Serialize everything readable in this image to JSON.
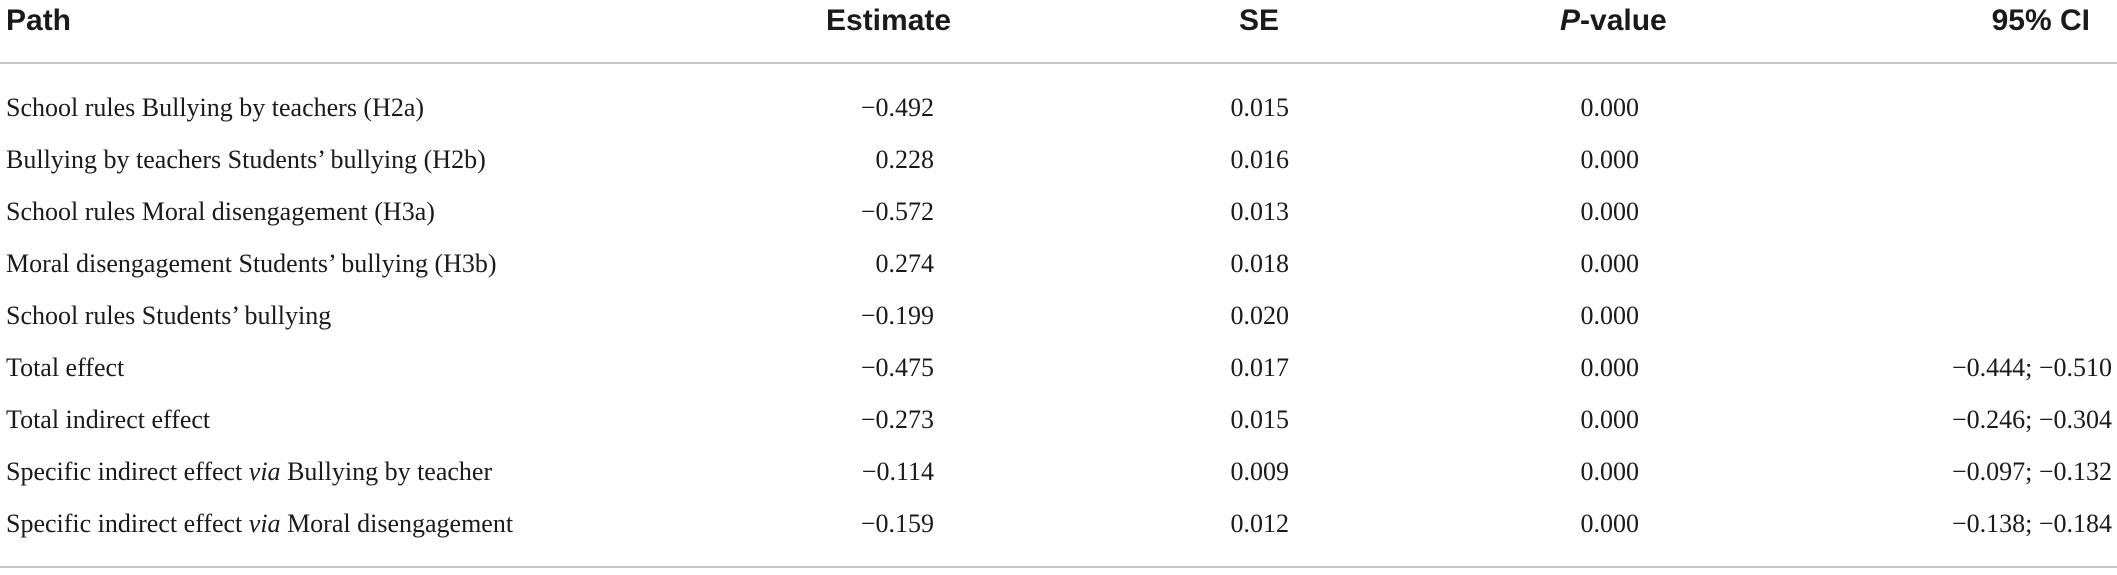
{
  "table": {
    "headers": {
      "path": "Path",
      "estimate": "Estimate",
      "se": "SE",
      "p_prefix": "P",
      "p_suffix": "-value",
      "ci": "95% CI"
    },
    "rows": [
      {
        "path": "School rules Bullying by teachers (H2a)",
        "estimate": "−0.492",
        "se": "0.015",
        "p": "0.000",
        "ci": ""
      },
      {
        "path": "Bullying by teachers Students’ bullying (H2b)",
        "estimate": "0.228",
        "se": "0.016",
        "p": "0.000",
        "ci": ""
      },
      {
        "path": "School rules Moral disengagement (H3a)",
        "estimate": "−0.572",
        "se": "0.013",
        "p": "0.000",
        "ci": ""
      },
      {
        "path": "Moral disengagement Students’ bullying (H3b)",
        "estimate": "0.274",
        "se": "0.018",
        "p": "0.000",
        "ci": ""
      },
      {
        "path": "School rules Students’ bullying",
        "estimate": "−0.199",
        "se": "0.020",
        "p": "0.000",
        "ci": ""
      },
      {
        "path": "Total effect",
        "estimate": "−0.475",
        "se": "0.017",
        "p": "0.000",
        "ci": "−0.444; −0.510"
      },
      {
        "path": "Total indirect effect",
        "estimate": "−0.273",
        "se": "0.015",
        "p": "0.000",
        "ci": "−0.246; −0.304"
      },
      {
        "path_pre": "Specific indirect effect ",
        "path_via": "via",
        "path_post": " Bullying by teacher",
        "estimate": "−0.114",
        "se": "0.009",
        "p": "0.000",
        "ci": "−0.097; −0.132"
      },
      {
        "path_pre": "Specific indirect effect ",
        "path_via": "via",
        "path_post": " Moral disengagement",
        "estimate": "−0.159",
        "se": "0.012",
        "p": "0.000",
        "ci": "−0.138; −0.184"
      }
    ]
  }
}
